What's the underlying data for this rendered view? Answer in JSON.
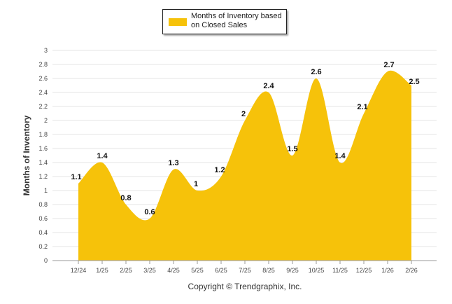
{
  "chart_data": {
    "type": "area",
    "title": "",
    "legend": {
      "position": "top-center",
      "entries": [
        "Months of Inventory based on Closed Sales"
      ]
    },
    "xlabel": "",
    "ylabel": "Months of Inventory",
    "ylim": [
      0,
      3
    ],
    "yticks": [
      "0",
      "0.2",
      "0.4",
      "0.6",
      "0.8",
      "1",
      "1.2",
      "1.4",
      "1.6",
      "1.8",
      "2",
      "2.2",
      "2.4",
      "2.6",
      "2.8",
      "3"
    ],
    "categories": [
      "12/24",
      "1/25",
      "2/25",
      "3/25",
      "4/25",
      "5/25",
      "6/25",
      "7/25",
      "8/25",
      "9/25",
      "10/25",
      "11/25",
      "12/25",
      "1/26",
      "2/26"
    ],
    "series": [
      {
        "name": "Months of Inventory based on Closed Sales",
        "values": [
          1.1,
          1.4,
          0.8,
          0.6,
          1.3,
          1,
          1.2,
          2,
          2.4,
          1.5,
          2.6,
          1.4,
          2.1,
          2.7,
          2.5
        ],
        "labels": [
          "1.1",
          "1.4",
          "0.8",
          "0.6",
          "1.3",
          "1",
          "1.2",
          "2",
          "2.4",
          "1.5",
          "2.6",
          "1.4",
          "2.1",
          "2.7",
          "2.5"
        ]
      }
    ],
    "grid": true,
    "colors": {
      "fill": "#F6C20A",
      "grid": "#e6e6e6",
      "axis": "#999999"
    }
  },
  "footer": {
    "copyright": "Copyright © Trendgraphix, Inc."
  }
}
